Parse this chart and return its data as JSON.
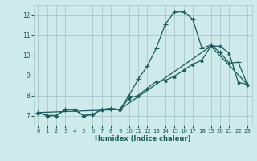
{
  "xlabel": "Humidex (Indice chaleur)",
  "xlim": [
    -0.5,
    23.5
  ],
  "ylim": [
    6.5,
    12.5
  ],
  "yticks": [
    7,
    8,
    9,
    10,
    11,
    12
  ],
  "xticks": [
    0,
    1,
    2,
    3,
    4,
    5,
    6,
    7,
    8,
    9,
    10,
    11,
    12,
    13,
    14,
    15,
    16,
    17,
    18,
    19,
    20,
    21,
    22,
    23
  ],
  "bg_color": "#ceeaea",
  "grid_color": "#aac8c8",
  "line_color": "#1a5c5c",
  "line1_x": [
    0,
    1,
    2,
    3,
    4,
    5,
    6,
    7,
    8,
    9,
    10,
    11,
    12,
    13,
    14,
    15,
    16,
    17,
    18,
    19,
    20,
    21,
    22,
    23
  ],
  "line1_y": [
    7.15,
    7.0,
    7.0,
    7.3,
    7.3,
    7.0,
    7.05,
    7.3,
    7.35,
    7.3,
    8.0,
    8.8,
    9.45,
    10.35,
    11.55,
    12.15,
    12.15,
    11.8,
    10.35,
    10.5,
    10.15,
    9.6,
    9.65,
    8.55
  ],
  "line2_x": [
    0,
    1,
    2,
    3,
    4,
    5,
    6,
    7,
    8,
    9,
    10,
    11,
    12,
    13,
    14,
    15,
    16,
    17,
    18,
    19,
    20,
    21,
    22,
    23
  ],
  "line2_y": [
    7.15,
    7.0,
    7.0,
    7.3,
    7.3,
    7.0,
    7.05,
    7.3,
    7.35,
    7.3,
    7.85,
    8.0,
    8.35,
    8.7,
    8.75,
    8.95,
    9.25,
    9.55,
    9.75,
    10.45,
    10.45,
    10.1,
    8.65,
    8.55
  ],
  "line3_x": [
    0,
    9,
    19,
    23
  ],
  "line3_y": [
    7.15,
    7.3,
    10.45,
    8.55
  ]
}
